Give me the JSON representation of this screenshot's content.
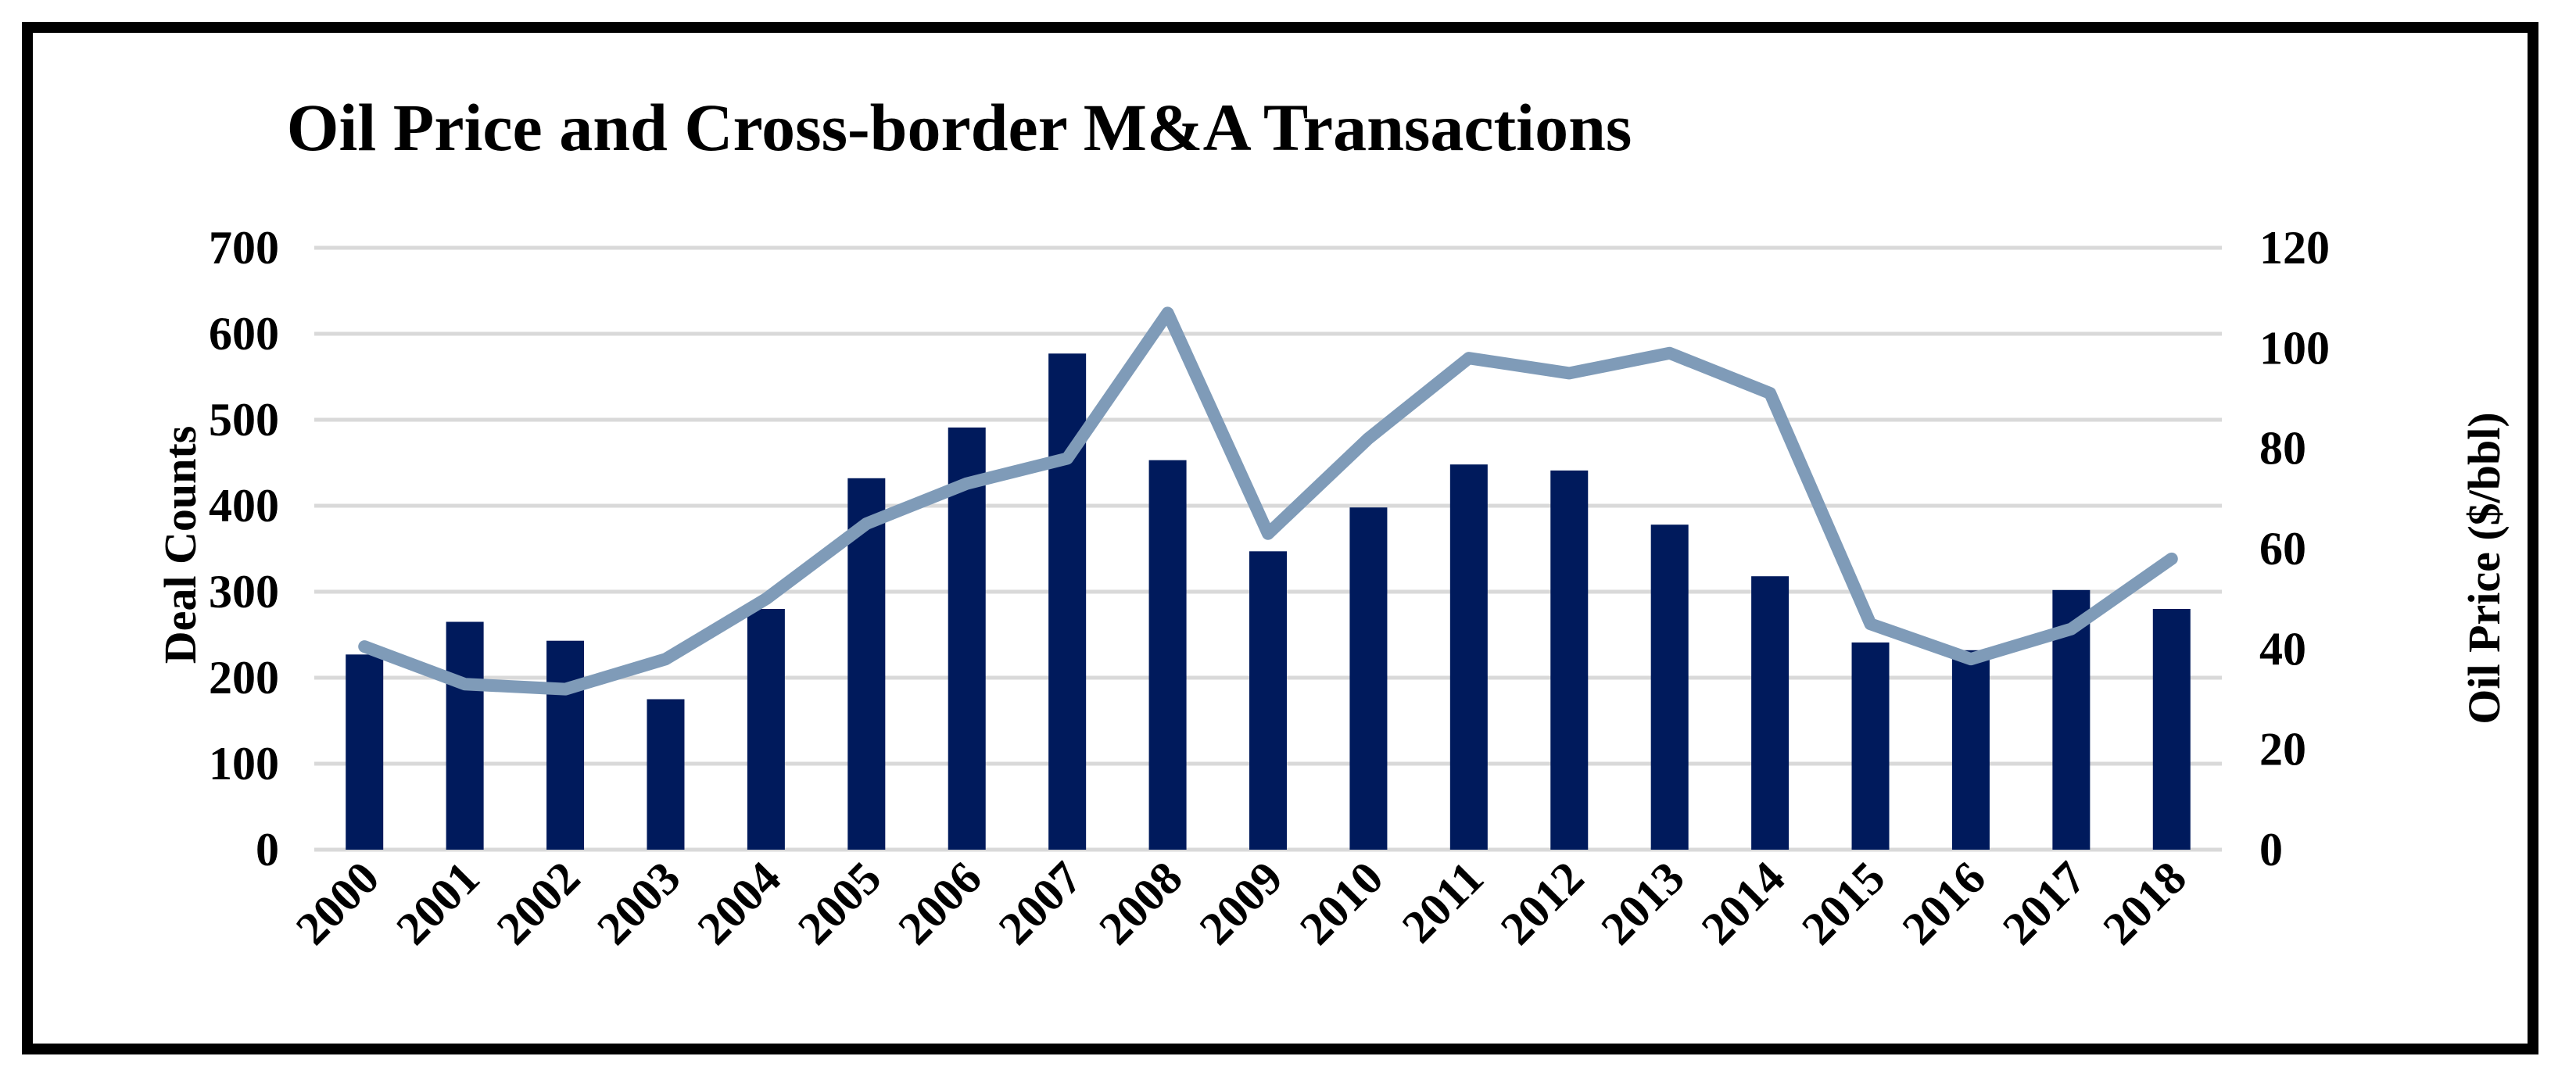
{
  "chart_data": {
    "type": "bar+line",
    "title": "Oil Price and Cross-border M&A Transactions",
    "categories": [
      "2000",
      "2001",
      "2002",
      "2003",
      "2004",
      "2005",
      "2006",
      "2007",
      "2008",
      "2009",
      "2010",
      "2011",
      "2012",
      "2013",
      "2014",
      "2015",
      "2016",
      "2017",
      "2018"
    ],
    "series": [
      {
        "name": "Deal Counts",
        "type": "bar",
        "axis": "left",
        "color": "#001a5c",
        "values": [
          227,
          265,
          243,
          175,
          280,
          432,
          491,
          577,
          453,
          347,
          398,
          448,
          441,
          378,
          318,
          241,
          232,
          302,
          280
        ]
      },
      {
        "name": "Oil Price ($/bbl)",
        "type": "line",
        "axis": "right",
        "color": "#7f9bb8",
        "values": [
          40.5,
          33,
          32,
          38,
          50,
          65,
          73,
          78,
          107,
          63,
          82,
          98,
          95,
          99,
          91,
          45,
          38,
          44,
          58
        ]
      }
    ],
    "ylabel": "Deal Counts",
    "y2label": "Oil Price ($/bbl)",
    "ylim": [
      0,
      700
    ],
    "y2lim": [
      0,
      120
    ],
    "yticks": [
      "0",
      "100",
      "200",
      "300",
      "400",
      "500",
      "600",
      "700"
    ],
    "y2ticks": [
      "0",
      "20",
      "40",
      "60",
      "80",
      "100",
      "120"
    ],
    "grid": true,
    "gridColor": "#d9d9d9"
  }
}
